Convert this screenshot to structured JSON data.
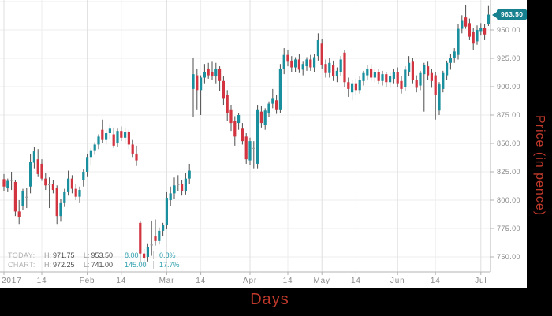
{
  "axis_titles": {
    "x": "Days",
    "y": "Price (in pence)",
    "color": "#c0392b"
  },
  "price_tag": {
    "value": "963.50",
    "color": "#17818f"
  },
  "stats": {
    "accent": "#2d9fae",
    "rows": [
      {
        "label": "TODAY:",
        "high_label": "H:",
        "high": "971.75",
        "low_label": "L:",
        "low": "953.50",
        "change": "8.00",
        "pct": "0.8%"
      },
      {
        "label": "CHART:",
        "high_label": "H:",
        "high": "972.25",
        "low_label": "L:",
        "low": "741.00",
        "change": "145.00",
        "pct": "17.7%"
      }
    ]
  },
  "chart_data": {
    "type": "candlestick",
    "xlabel": "Days",
    "ylabel": "Price (in pence)",
    "ylim": [
      737,
      976
    ],
    "grid": true,
    "y_grid_prices": [
      975,
      950,
      925,
      900,
      875,
      850,
      825,
      800,
      775,
      750
    ],
    "y_label_prices": [
      950,
      925,
      900,
      875,
      850,
      825,
      800,
      775,
      750
    ],
    "last_price": 963.5,
    "chart_high": 972.25,
    "chart_low": 741.0,
    "today_high": 971.75,
    "today_low": 953.5,
    "today_change": 8.0,
    "today_change_pct": "0.8%",
    "chart_change": 145.0,
    "chart_change_pct": "17.7%",
    "x_ticks": [
      {
        "label": "2017",
        "i": 0,
        "month": true
      },
      {
        "label": "14",
        "i": 10,
        "month": false
      },
      {
        "label": "Feb",
        "i": 22,
        "month": true
      },
      {
        "label": "14",
        "i": 31,
        "month": false
      },
      {
        "label": "Mar",
        "i": 43,
        "month": true
      },
      {
        "label": "14",
        "i": 52,
        "month": false
      },
      {
        "label": "Apr",
        "i": 65,
        "month": true
      },
      {
        "label": "14",
        "i": 75,
        "month": false
      },
      {
        "label": "May",
        "i": 84,
        "month": true
      },
      {
        "label": "14",
        "i": 93,
        "month": false
      },
      {
        "label": "Jun",
        "i": 104,
        "month": true
      },
      {
        "label": "14",
        "i": 114,
        "month": false
      },
      {
        "label": "Jul",
        "i": 126,
        "month": true
      }
    ],
    "colors": {
      "up": "#1a8f9e",
      "down": "#d23440",
      "doji": "#9a9a9a",
      "wick": "#4d4d4d",
      "grid": "#ededed",
      "grid_month": "#dfdfdf",
      "axis": "#b3b3b3",
      "tick_text": "#8a8a8a"
    },
    "ohlc_format": [
      "open",
      "high",
      "low",
      "close"
    ],
    "candles": [
      [
        818.5,
        823,
        808,
        812
      ],
      [
        811,
        819,
        807,
        817
      ],
      [
        817,
        825,
        809,
        818
      ],
      [
        816,
        818,
        786,
        790
      ],
      [
        790,
        800,
        779,
        785
      ],
      [
        795,
        810,
        791,
        808
      ],
      [
        803,
        811,
        793,
        803
      ],
      [
        812,
        841,
        806,
        834
      ],
      [
        833,
        847,
        828,
        843
      ],
      [
        836,
        845,
        821,
        823
      ],
      [
        832,
        836,
        817,
        819
      ],
      [
        819,
        824,
        809,
        813
      ],
      [
        814,
        820,
        793,
        814
      ],
      [
        814,
        818,
        806,
        809
      ],
      [
        811,
        813,
        779,
        786
      ],
      [
        786,
        801,
        781,
        798
      ],
      [
        798,
        810,
        794,
        807
      ],
      [
        807,
        826,
        804,
        819
      ],
      [
        819,
        822,
        806,
        810
      ],
      [
        810,
        814,
        800,
        803
      ],
      [
        803,
        812,
        798,
        809
      ],
      [
        818,
        827,
        812,
        825
      ],
      [
        825,
        841,
        821,
        838
      ],
      [
        838,
        846,
        831,
        844
      ],
      [
        844,
        851,
        840,
        849
      ],
      [
        849,
        858,
        845,
        856
      ],
      [
        862,
        871,
        850,
        853
      ],
      [
        853,
        862,
        849,
        859
      ],
      [
        859,
        867,
        854,
        863
      ],
      [
        858,
        864,
        846,
        848
      ],
      [
        850,
        863,
        847,
        861
      ],
      [
        861,
        865,
        852,
        855
      ],
      [
        855,
        864,
        850,
        860
      ],
      [
        860,
        862,
        845,
        849
      ],
      [
        849,
        853,
        838,
        841
      ],
      [
        841,
        848,
        830,
        835
      ],
      [
        780,
        782,
        745,
        753
      ],
      [
        753,
        757,
        741,
        749
      ],
      [
        750,
        762,
        746,
        759
      ],
      [
        760,
        782,
        751,
        761
      ],
      [
        768,
        783,
        760,
        764
      ],
      [
        764,
        776,
        761,
        773
      ],
      [
        773,
        780,
        768,
        778
      ],
      [
        778,
        807,
        775,
        802
      ],
      [
        800,
        812,
        795,
        806
      ],
      [
        806,
        820,
        801,
        813
      ],
      [
        814,
        822,
        808,
        814
      ],
      [
        814,
        818,
        804,
        808
      ],
      [
        808,
        824,
        805,
        819
      ],
      [
        819,
        832,
        814,
        826
      ],
      [
        898,
        925,
        873,
        911
      ],
      [
        910,
        916,
        880,
        897
      ],
      [
        897,
        910,
        875,
        908
      ],
      [
        908,
        920,
        903,
        913
      ],
      [
        916,
        921,
        907,
        910
      ],
      [
        913,
        922,
        906,
        909
      ],
      [
        909,
        921,
        903,
        916
      ],
      [
        916,
        918,
        896,
        905
      ],
      [
        905,
        909,
        884,
        890
      ],
      [
        893,
        897,
        870,
        877
      ],
      [
        880,
        884,
        861,
        868
      ],
      [
        870,
        874,
        848,
        856
      ],
      [
        868,
        877,
        862,
        875
      ],
      [
        863,
        868,
        849,
        852
      ],
      [
        856,
        859,
        832,
        836
      ],
      [
        835,
        855,
        831,
        852
      ],
      [
        846,
        852,
        828,
        846
      ],
      [
        832,
        884,
        828,
        880
      ],
      [
        878,
        883,
        864,
        868
      ],
      [
        866,
        881,
        862,
        879
      ],
      [
        877,
        887,
        873,
        885
      ],
      [
        885,
        898,
        881,
        890
      ],
      [
        888,
        893,
        876,
        880
      ],
      [
        880,
        920,
        877,
        916
      ],
      [
        916,
        934,
        911,
        928
      ],
      [
        928,
        932,
        918,
        922
      ],
      [
        923,
        927,
        913,
        917
      ],
      [
        917,
        926,
        913,
        924
      ],
      [
        924,
        929,
        912,
        915
      ],
      [
        915,
        922,
        910,
        920
      ],
      [
        918,
        926,
        914,
        924
      ],
      [
        924,
        928,
        914,
        917
      ],
      [
        917,
        929,
        913,
        926
      ],
      [
        927,
        947,
        923,
        941
      ],
      [
        938,
        942,
        916,
        919
      ],
      [
        920,
        924,
        908,
        912
      ],
      [
        912,
        925,
        908,
        921
      ],
      [
        919,
        923,
        905,
        909
      ],
      [
        909,
        917,
        904,
        914
      ],
      [
        913,
        927,
        909,
        924
      ],
      [
        930,
        932,
        900,
        904
      ],
      [
        904,
        908,
        891,
        898
      ],
      [
        895,
        906,
        888,
        903
      ],
      [
        903,
        907,
        893,
        897
      ],
      [
        897,
        909,
        894,
        906
      ],
      [
        905,
        914,
        901,
        912
      ],
      [
        910,
        919,
        906,
        916
      ],
      [
        916,
        920,
        905,
        908
      ],
      [
        908,
        916,
        904,
        913
      ],
      [
        913,
        916,
        902,
        905
      ],
      [
        905,
        914,
        901,
        911
      ],
      [
        911,
        913,
        900,
        904
      ],
      [
        904,
        912,
        899,
        909
      ],
      [
        907,
        916,
        903,
        913
      ],
      [
        913,
        917,
        900,
        903
      ],
      [
        905,
        909,
        894,
        898
      ],
      [
        900,
        918,
        896,
        915
      ],
      [
        913,
        927,
        909,
        921
      ],
      [
        922,
        925,
        903,
        906
      ],
      [
        906,
        910,
        895,
        899
      ],
      [
        901,
        914,
        897,
        912
      ],
      [
        911,
        921,
        878,
        919
      ],
      [
        918,
        922,
        906,
        910
      ],
      [
        912,
        916,
        899,
        905
      ],
      [
        910,
        913,
        871,
        893
      ],
      [
        879,
        904,
        875,
        902
      ],
      [
        898,
        914,
        895,
        912
      ],
      [
        910,
        923,
        906,
        921
      ],
      [
        921,
        929,
        915,
        925
      ],
      [
        925,
        934,
        921,
        931
      ],
      [
        928,
        955,
        924,
        951
      ],
      [
        951,
        963,
        947,
        958
      ],
      [
        961,
        972.25,
        951,
        953
      ],
      [
        956,
        960,
        941,
        944
      ],
      [
        948,
        952,
        932,
        938
      ],
      [
        940,
        954,
        937,
        950
      ],
      [
        949,
        956,
        945,
        952
      ],
      [
        952,
        955,
        941,
        946
      ],
      [
        955.5,
        971.75,
        953.5,
        963.5
      ]
    ]
  }
}
